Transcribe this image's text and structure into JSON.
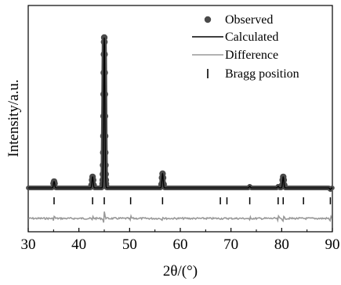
{
  "chart_data": {
    "type": "line",
    "title": "",
    "xlabel": "2θ/(°)",
    "ylabel": "Intensity/a.u.",
    "xlim": [
      30,
      90
    ],
    "xticks": [
      30,
      40,
      50,
      60,
      70,
      80,
      90
    ],
    "grid": false,
    "y_tick_labels": false,
    "legend": {
      "placement": "top-right",
      "entries": [
        {
          "label": "Observed",
          "marker": "filled-circle",
          "color": "#4a4a4a"
        },
        {
          "label": "Calculated",
          "marker": "line",
          "color": "#000000"
        },
        {
          "label": "Difference",
          "marker": "line",
          "color": "#999999"
        },
        {
          "label": "Bragg position",
          "marker": "vertical-tick",
          "color": "#000000"
        }
      ]
    },
    "baseline_intensity": 5,
    "peaks": [
      {
        "two_theta": 35.1,
        "intensity": 9
      },
      {
        "two_theta": 42.7,
        "intensity": 12
      },
      {
        "two_theta": 45.0,
        "intensity": 100
      },
      {
        "two_theta": 50.2,
        "intensity": 5
      },
      {
        "two_theta": 56.5,
        "intensity": 14
      },
      {
        "two_theta": 73.7,
        "intensity": 6
      },
      {
        "two_theta": 79.3,
        "intensity": 6
      },
      {
        "two_theta": 80.3,
        "intensity": 12
      },
      {
        "two_theta": 89.6,
        "intensity": 4
      }
    ],
    "bragg_positions": [
      35.1,
      42.7,
      45.0,
      50.2,
      56.5,
      67.9,
      69.2,
      73.7,
      79.3,
      80.3,
      84.3,
      89.6
    ]
  }
}
